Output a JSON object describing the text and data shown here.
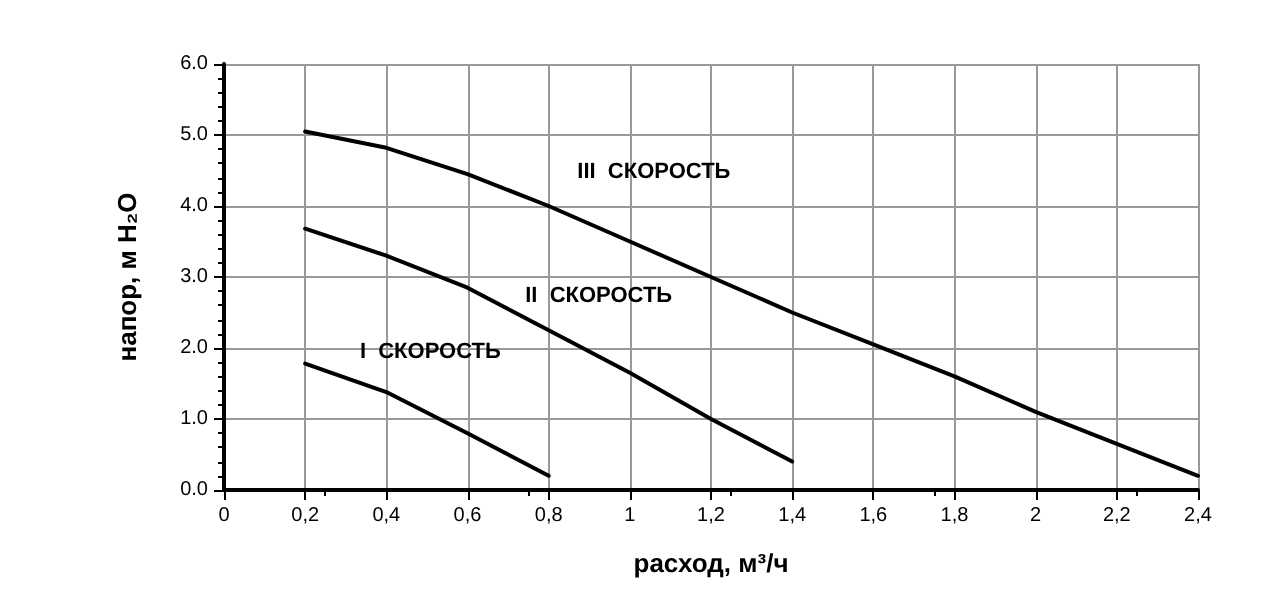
{
  "chart_data": {
    "type": "line",
    "xlabel": "расход, м³/ч",
    "ylabel": "напор, м H₂O",
    "xlim": [
      0,
      2.4
    ],
    "ylim": [
      0,
      6
    ],
    "xticks": [
      0,
      {
        "value": 0.2,
        "label": "0,2"
      },
      {
        "value": 0.4,
        "label": "0,4"
      },
      {
        "value": 0.6,
        "label": "0,6"
      },
      {
        "value": 0.8,
        "label": "0,8"
      },
      1,
      {
        "value": 1.2,
        "label": "1,2"
      },
      {
        "value": 1.4,
        "label": "1,4"
      },
      {
        "value": 1.6,
        "label": "1,6"
      },
      {
        "value": 1.8,
        "label": "1,8"
      },
      2,
      {
        "value": 2.2,
        "label": "2,2"
      },
      {
        "value": 2.4,
        "label": "2,4"
      }
    ],
    "yticks": [
      {
        "value": 0,
        "label": "0.0"
      },
      {
        "value": 1,
        "label": "1.0"
      },
      {
        "value": 2,
        "label": "2.0"
      },
      {
        "value": 3,
        "label": "3.0"
      },
      {
        "value": 4,
        "label": "4.0"
      },
      {
        "value": 5,
        "label": "5.0"
      },
      {
        "value": 6,
        "label": "6.0"
      }
    ],
    "grid": true,
    "legend": false,
    "marker": "none",
    "line_style": "solid",
    "series": [
      {
        "name": "III  СКОРОСТЬ",
        "color": "#000000",
        "x": [
          0.2,
          0.4,
          0.6,
          0.8,
          1.0,
          1.2,
          1.4,
          1.6,
          1.8,
          2.0,
          2.2,
          2.4
        ],
        "values": [
          5.05,
          4.82,
          4.45,
          4.0,
          3.5,
          3.0,
          2.5,
          2.05,
          1.6,
          1.1,
          0.65,
          0.2
        ]
      },
      {
        "name": "II  СКОРОСТЬ",
        "color": "#000000",
        "x": [
          0.2,
          0.4,
          0.6,
          0.8,
          1.0,
          1.2,
          1.4
        ],
        "values": [
          3.68,
          3.3,
          2.85,
          2.25,
          1.65,
          1.0,
          0.4
        ]
      },
      {
        "name": "I  СКОРОСТЬ",
        "color": "#000000",
        "x": [
          0.2,
          0.4,
          0.6,
          0.8
        ],
        "values": [
          1.78,
          1.38,
          0.8,
          0.2
        ]
      }
    ]
  }
}
